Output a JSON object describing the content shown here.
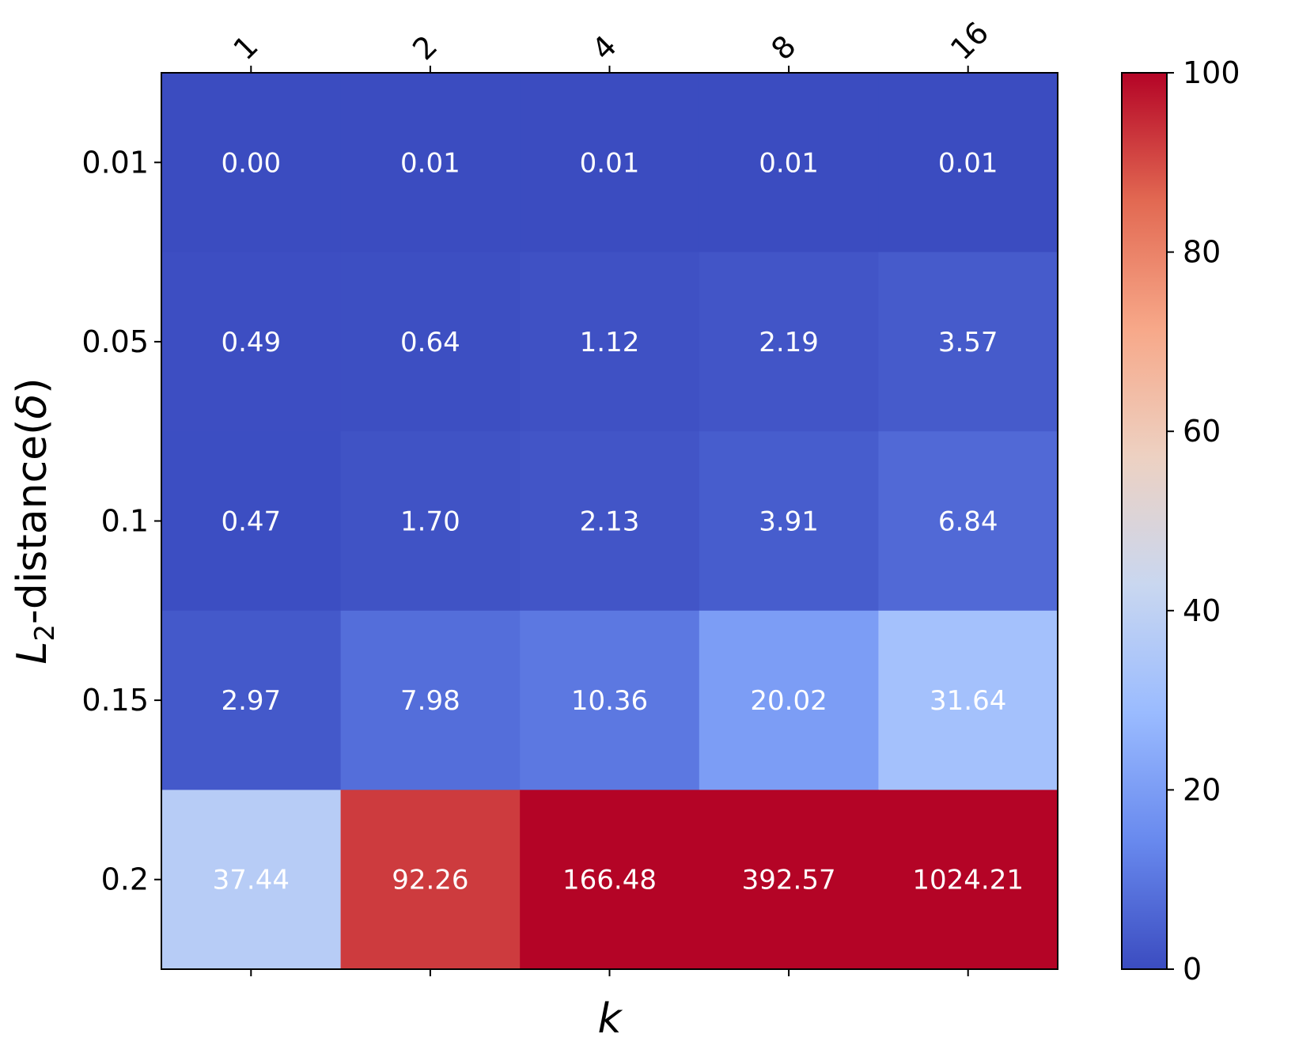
{
  "chart_data": {
    "type": "heatmap",
    "x_categories": [
      "1",
      "2",
      "4",
      "8",
      "16"
    ],
    "y_categories": [
      "0.01",
      "0.05",
      "0.1",
      "0.15",
      "0.2"
    ],
    "values": [
      [
        0.0,
        0.01,
        0.01,
        0.01,
        0.01
      ],
      [
        0.49,
        0.64,
        1.12,
        2.19,
        3.57
      ],
      [
        0.47,
        1.7,
        2.13,
        3.91,
        6.84
      ],
      [
        2.97,
        7.98,
        10.36,
        20.02,
        31.64
      ],
      [
        37.44,
        92.26,
        166.48,
        392.57,
        1024.21
      ]
    ],
    "cell_labels": [
      [
        "0.00",
        "0.01",
        "0.01",
        "0.01",
        "0.01"
      ],
      [
        "0.49",
        "0.64",
        "1.12",
        "2.19",
        "3.57"
      ],
      [
        "0.47",
        "1.70",
        "2.13",
        "3.91",
        "6.84"
      ],
      [
        "2.97",
        "7.98",
        "10.36",
        "20.02",
        "31.64"
      ],
      [
        "37.44",
        "92.26",
        "166.48",
        "392.57",
        "1024.21"
      ]
    ],
    "xlabel": "k",
    "ylabel_main": "L",
    "ylabel_subscript": "2",
    "ylabel_rest": "-distance(",
    "ylabel_symbol": "δ",
    "ylabel_close": ")",
    "colorbar": {
      "range": [
        0,
        100
      ],
      "ticks": [
        "0",
        "20",
        "40",
        "60",
        "80",
        "100"
      ],
      "colormap": "coolwarm",
      "colormap_stops": [
        "#3b4cc0",
        "#6889ee",
        "#9abbff",
        "#c9d7f0",
        "#edd1c2",
        "#f7a889",
        "#e26952",
        "#b40426"
      ]
    },
    "x_tick_position": "top",
    "x_tick_rotation": "45deg",
    "grid": false
  }
}
